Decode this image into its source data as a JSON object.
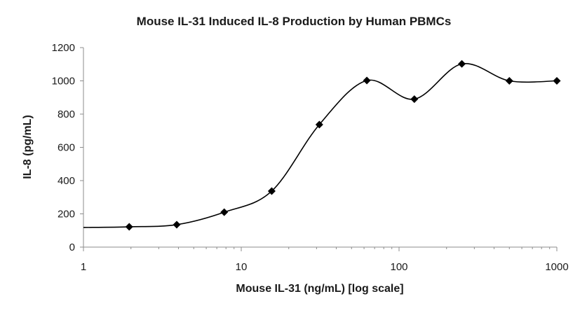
{
  "chart_data": {
    "type": "scatter",
    "title": "Mouse IL-31 Induced IL-8 Production by Human PBMCs",
    "xlabel": "Mouse IL-31 (ng/mL) [log scale]",
    "ylabel": "IL-8 (pg/mL)",
    "x_scale": "log",
    "xlim": [
      1,
      1000
    ],
    "ylim": [
      0,
      1200
    ],
    "x_ticks": [
      "1",
      "10",
      "100",
      "1000"
    ],
    "y_ticks": [
      "0",
      "200",
      "400",
      "600",
      "800",
      "1000",
      "1200"
    ],
    "grid": false,
    "legend": "none",
    "series": [
      {
        "x": [
          1.95,
          3.9,
          7.8,
          15.6,
          31.25,
          62.5,
          125,
          250,
          500,
          1000
        ],
        "y": [
          122,
          135,
          210,
          337,
          737,
          1002,
          890,
          1102,
          1000,
          1000
        ],
        "smooth_line": true,
        "marker": "diamond",
        "color": "#000000"
      }
    ],
    "line_start": {
      "x": 1,
      "y": 118
    }
  }
}
